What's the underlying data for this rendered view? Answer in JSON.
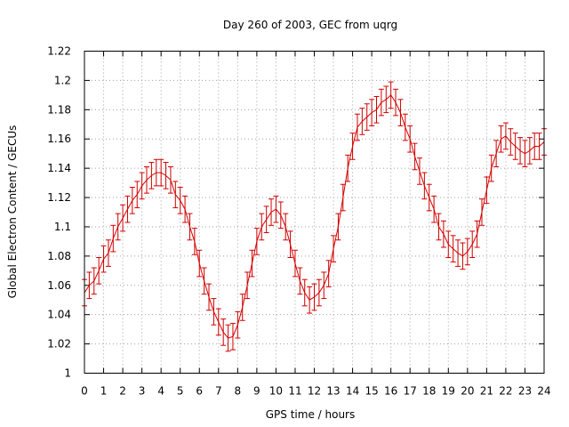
{
  "chart_data": {
    "type": "line",
    "title": "Day 260 of 2003, GEC from uqrg",
    "xlabel": "GPS time / hours",
    "ylabel": "Global Electron Content / GECUs",
    "xlim": [
      0,
      24
    ],
    "ylim": [
      1.0,
      1.22
    ],
    "xticks": [
      "0",
      "1",
      "2",
      "3",
      "4",
      "5",
      "6",
      "7",
      "8",
      "9",
      "10",
      "11",
      "12",
      "13",
      "14",
      "15",
      "16",
      "17",
      "18",
      "19",
      "20",
      "21",
      "22",
      "23",
      "24"
    ],
    "yticks": [
      "1",
      "1.02",
      "1.04",
      "1.06",
      "1.08",
      "1.1",
      "1.12",
      "1.14",
      "1.16",
      "1.18",
      "1.2",
      "1.22"
    ],
    "grid": true,
    "legend": "none",
    "color": "#d00000",
    "error_bar": 0.009,
    "series": [
      {
        "x": [
          0,
          0.25,
          0.5,
          0.75,
          1,
          1.25,
          1.5,
          1.75,
          2,
          2.25,
          2.5,
          2.75,
          3,
          3.25,
          3.5,
          3.75,
          4,
          4.25,
          4.5,
          4.75,
          5,
          5.25,
          5.5,
          5.75,
          6,
          6.25,
          6.5,
          6.75,
          7,
          7.25,
          7.5,
          7.75,
          8,
          8.25,
          8.5,
          8.75,
          9,
          9.25,
          9.5,
          9.75,
          10,
          10.25,
          10.5,
          10.75,
          11,
          11.25,
          11.5,
          11.75,
          12,
          12.25,
          12.5,
          12.75,
          13,
          13.25,
          13.5,
          13.75,
          14,
          14.25,
          14.5,
          14.75,
          15,
          15.25,
          15.5,
          15.75,
          16,
          16.25,
          16.5,
          16.75,
          17,
          17.25,
          17.5,
          17.75,
          18,
          18.25,
          18.5,
          18.75,
          19,
          19.25,
          19.5,
          19.75,
          20,
          20.25,
          20.5,
          20.75,
          21,
          21.25,
          21.5,
          21.75,
          22,
          22.25,
          22.5,
          22.75,
          23,
          23.25,
          23.5,
          23.75,
          24
        ],
        "values": [
          1.055,
          1.06,
          1.063,
          1.07,
          1.078,
          1.082,
          1.092,
          1.1,
          1.106,
          1.112,
          1.118,
          1.122,
          1.128,
          1.132,
          1.135,
          1.137,
          1.137,
          1.135,
          1.132,
          1.122,
          1.118,
          1.112,
          1.1,
          1.09,
          1.075,
          1.063,
          1.052,
          1.042,
          1.035,
          1.028,
          1.024,
          1.025,
          1.033,
          1.045,
          1.06,
          1.075,
          1.09,
          1.1,
          1.105,
          1.11,
          1.112,
          1.108,
          1.1,
          1.088,
          1.075,
          1.063,
          1.055,
          1.05,
          1.052,
          1.055,
          1.06,
          1.068,
          1.085,
          1.1,
          1.12,
          1.14,
          1.155,
          1.168,
          1.172,
          1.175,
          1.178,
          1.18,
          1.185,
          1.187,
          1.19,
          1.185,
          1.178,
          1.168,
          1.16,
          1.148,
          1.138,
          1.128,
          1.12,
          1.112,
          1.1,
          1.095,
          1.088,
          1.085,
          1.082,
          1.08,
          1.083,
          1.088,
          1.095,
          1.11,
          1.125,
          1.14,
          1.15,
          1.16,
          1.162,
          1.158,
          1.155,
          1.152,
          1.15,
          1.152,
          1.155,
          1.155,
          1.158
        ]
      }
    ]
  }
}
